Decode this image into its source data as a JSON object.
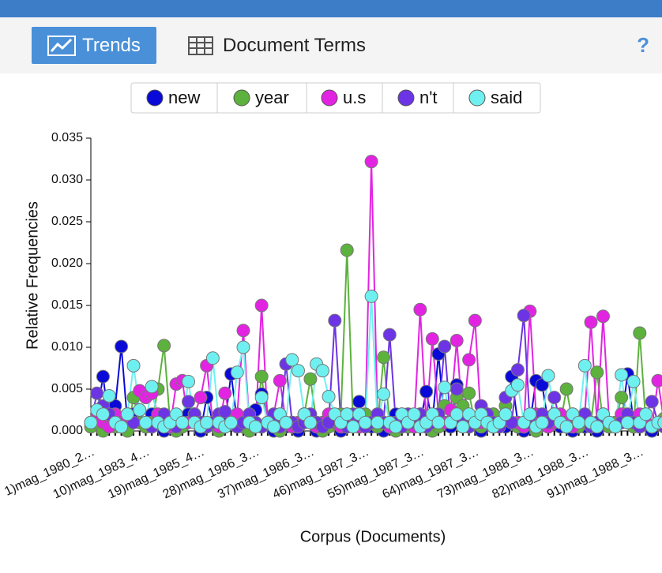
{
  "toolbar": {
    "tabs": [
      "Trends",
      "Document Terms"
    ],
    "help": "?"
  },
  "chart_data": {
    "type": "line",
    "y_label": "Relative Frequencies",
    "x_label": "Corpus (Documents)",
    "ylim": [
      0,
      0.035
    ],
    "yticks": [
      {
        "value": 0,
        "label": "0.000"
      },
      {
        "value": 0.005,
        "label": "0.005"
      },
      {
        "value": 0.01,
        "label": "0.010"
      },
      {
        "value": 0.015,
        "label": "0.015"
      },
      {
        "value": 0.02,
        "label": "0.020"
      },
      {
        "value": 0.025,
        "label": "0.025"
      },
      {
        "value": 0.03,
        "label": "0.030"
      },
      {
        "value": 0.035,
        "label": "0.035"
      }
    ],
    "categories": [
      "1)mag_1980_2…",
      null,
      null,
      null,
      null,
      null,
      null,
      null,
      null,
      "10)mag_1983_4…",
      null,
      null,
      null,
      null,
      null,
      null,
      null,
      null,
      "19)mag_1985_4…",
      null,
      null,
      null,
      null,
      null,
      null,
      null,
      null,
      "28)mag_1986_3…",
      null,
      null,
      null,
      null,
      null,
      null,
      null,
      null,
      "37)mag_1986_3…",
      null,
      null,
      null,
      null,
      null,
      null,
      null,
      null,
      "46)mag_1987_3…",
      null,
      null,
      null,
      null,
      null,
      null,
      null,
      null,
      "55)mag_1987_3…",
      null,
      null,
      null,
      null,
      null,
      null,
      null,
      null,
      "64)mag_1987_3…",
      null,
      null,
      null,
      null,
      null,
      null,
      null,
      null,
      "73)mag_1988_3…",
      null,
      null,
      null,
      null,
      null,
      null,
      null,
      null,
      "82)mag_1988_3…",
      null,
      null,
      null,
      null,
      null,
      null,
      null,
      null,
      "91)mag_1988_3…",
      null,
      null,
      null,
      null
    ],
    "series": [
      {
        "name": "new",
        "color": "#0a0ad8",
        "values": [
          0.001,
          0.002,
          0.0065,
          0.001,
          0.003,
          0.0101,
          0.001,
          0.002,
          0.001,
          0.0005,
          0.002,
          0.001,
          0,
          0.001,
          0.0005,
          0.001,
          0.002,
          0.001,
          0,
          0.004,
          0.001,
          0.0005,
          0.001,
          0.0068,
          0.001,
          0.0005,
          0.001,
          0.0025,
          0.0044,
          0.001,
          0,
          0.001,
          0.0005,
          0.001,
          0,
          0.002,
          0.001,
          0,
          0.0005,
          0.001,
          0.001,
          0,
          0.0005,
          0.001,
          0.0035,
          0.001,
          0.0005,
          0.001,
          0,
          0.001,
          0.002,
          0.001,
          0.002,
          0.0005,
          0.001,
          0.0047,
          0.001,
          0.0092,
          0.001,
          0.0005,
          0.0055,
          0.001,
          0.0005,
          0.001,
          0,
          0.001,
          0.002,
          0.001,
          0.0005,
          0.0065,
          0.001,
          0,
          0.001,
          0.006,
          0.0055,
          0.001,
          0.002,
          0.0005,
          0.001,
          0,
          0.001,
          0.0005,
          0.001,
          0,
          0.001,
          0.0005,
          0.001,
          0.001,
          0.0068,
          0.001,
          0.0005,
          0.001,
          0,
          0.001,
          0.0005
        ]
      },
      {
        "name": "year",
        "color": "#5cb23c",
        "values": [
          0.0005,
          0.001,
          0,
          0.001,
          0.0005,
          0.001,
          0,
          0.004,
          0.001,
          0.0005,
          0.001,
          0.005,
          0.0102,
          0.001,
          0,
          0.0005,
          0.001,
          0.002,
          0.001,
          0.0005,
          0.001,
          0,
          0.0005,
          0.001,
          0.001,
          0.0005,
          0,
          0.001,
          0.0065,
          0.001,
          0.0005,
          0,
          0.001,
          0.001,
          0.0005,
          0.002,
          0.0062,
          0.001,
          0,
          0.0005,
          0.001,
          0.002,
          0.0216,
          0.001,
          0.0005,
          0.002,
          0.001,
          0.0005,
          0.0088,
          0.001,
          0,
          0.001,
          0.0005,
          0.001,
          0.002,
          0.001,
          0,
          0.0005,
          0.003,
          0.001,
          0.004,
          0.003,
          0.0045,
          0.001,
          0.0005,
          0.001,
          0.002,
          0.001,
          0.003,
          0.001,
          0.0005,
          0.001,
          0.001,
          0,
          0.001,
          0.0005,
          0.002,
          0.001,
          0.005,
          0.001,
          0.0005,
          0.001,
          0.001,
          0.007,
          0.001,
          0.0005,
          0.001,
          0.004,
          0.001,
          0.0005,
          0.0117,
          0.001,
          0.0005,
          0.001,
          0.0015
        ]
      },
      {
        "name": "u.s",
        "color": "#e224e2",
        "values": [
          0.001,
          0.002,
          0.001,
          0.0005,
          0.002,
          0.001,
          0.002,
          0.001,
          0.0048,
          0.004,
          0.0045,
          0.002,
          0.001,
          0.0005,
          0.0056,
          0.006,
          0.001,
          0.002,
          0.004,
          0.0078,
          0.001,
          0.0005,
          0.0045,
          0.001,
          0.002,
          0.012,
          0.001,
          0.0005,
          0.015,
          0.001,
          0.002,
          0.006,
          0.001,
          0.0005,
          0.001,
          0.002,
          0.001,
          0.0005,
          0.001,
          0.002,
          0.001,
          0.0005,
          0.002,
          0.001,
          0.0005,
          0.001,
          0.0322,
          0.002,
          0.001,
          0.0005,
          0.001,
          0.002,
          0.001,
          0.0005,
          0.0145,
          0.001,
          0.011,
          0.002,
          0.001,
          0.0025,
          0.0108,
          0.001,
          0.0085,
          0.0132,
          0.001,
          0.002,
          0.0005,
          0.001,
          0.002,
          0.001,
          0.001,
          0.0005,
          0.0143,
          0.002,
          0.001,
          0.0005,
          0.001,
          0.002,
          0.001,
          0.0005,
          0.001,
          0.002,
          0.013,
          0.001,
          0.0137,
          0.001,
          0.0005,
          0.002,
          0.001,
          0.001,
          0.002,
          0.001,
          0.0005,
          0.006,
          0.001
        ]
      },
      {
        "name": "n't",
        "color": "#6c34e4",
        "values": [
          0.001,
          0.0045,
          0.003,
          0.002,
          0.001,
          0.0005,
          0.002,
          0.001,
          0.0025,
          0.001,
          0.0005,
          0.001,
          0.002,
          0.001,
          0.0005,
          0.001,
          0.0035,
          0.002,
          0.001,
          0.0005,
          0.001,
          0.002,
          0.0023,
          0.001,
          0.0005,
          0.001,
          0.002,
          0.001,
          0.0005,
          0.001,
          0.002,
          0.0005,
          0.008,
          0.001,
          0.0005,
          0.001,
          0.002,
          0.001,
          0.0005,
          0.001,
          0.0132,
          0.001,
          0.0005,
          0.002,
          0.001,
          0.0005,
          0.001,
          0.002,
          0.001,
          0.0115,
          0.001,
          0.0005,
          0.002,
          0.001,
          0.002,
          0.0005,
          0.001,
          0.002,
          0.0101,
          0.001,
          0.005,
          0.001,
          0.0005,
          0.001,
          0.003,
          0.002,
          0.001,
          0.0005,
          0.004,
          0.001,
          0.0073,
          0.0138,
          0.001,
          0.0005,
          0.002,
          0.001,
          0.004,
          0.001,
          0.0005,
          0.002,
          0.001,
          0.002,
          0.0005,
          0.001,
          0.002,
          0.001,
          0.0005,
          0.001,
          0.002,
          0.001,
          0.0005,
          0.002,
          0.0035,
          0.001,
          0.0005
        ]
      },
      {
        "name": "said",
        "color": "#6ff0f0",
        "values": [
          0.001,
          0.0025,
          0.002,
          0.0042,
          0.001,
          0.0005,
          0.002,
          0.0078,
          0.0025,
          0.001,
          0.0053,
          0.001,
          0.0005,
          0.001,
          0.002,
          0.001,
          0.0059,
          0.001,
          0.0005,
          0.001,
          0.0087,
          0.001,
          0.0005,
          0.001,
          0.007,
          0.01,
          0.001,
          0.0005,
          0.004,
          0.001,
          0.0005,
          0.002,
          0.001,
          0.0085,
          0.0072,
          0.002,
          0.001,
          0.008,
          0.0072,
          0.0041,
          0.002,
          0.001,
          0.002,
          0.0005,
          0.002,
          0.001,
          0.0161,
          0.001,
          0.0044,
          0.001,
          0.0005,
          0.002,
          0.001,
          0.002,
          0.0005,
          0.001,
          0.002,
          0.001,
          0.0052,
          0.001,
          0.002,
          0.0005,
          0.002,
          0.001,
          0.002,
          0.001,
          0.0005,
          0.001,
          0.002,
          0.0048,
          0.0055,
          0.001,
          0.002,
          0.0005,
          0.001,
          0.0066,
          0.002,
          0.001,
          0.0005,
          0.002,
          0.001,
          0.0078,
          0.001,
          0.0005,
          0.002,
          0.001,
          0.0005,
          0.0067,
          0.001,
          0.0059,
          0.001,
          0.002,
          0.0005,
          0.001,
          0.001
        ]
      }
    ]
  }
}
